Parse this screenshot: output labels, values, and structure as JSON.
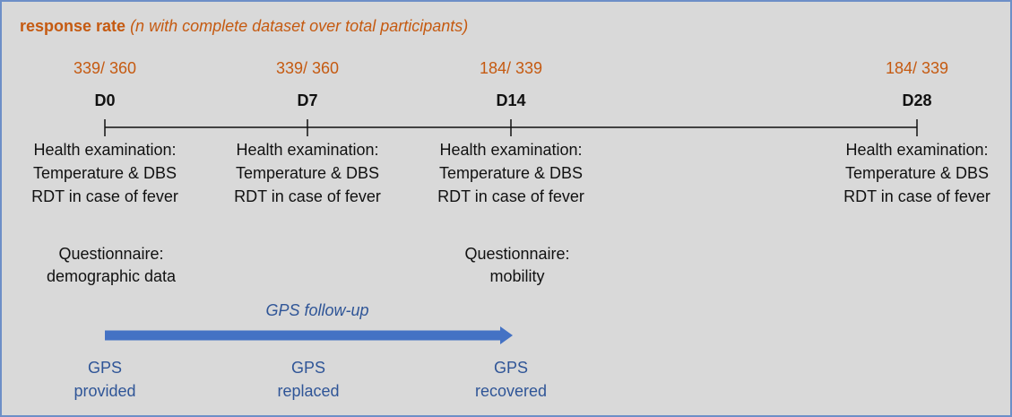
{
  "header": {
    "label": "response rate",
    "note": "(n with complete dataset over total participants)"
  },
  "timepoints": [
    {
      "day": "D0",
      "rate": "339/ 360",
      "exam": [
        "Health examination:",
        "Temperature & DBS",
        "RDT in case of fever"
      ]
    },
    {
      "day": "D7",
      "rate": "339/ 360",
      "exam": [
        "Health examination:",
        "Temperature & DBS",
        "RDT in case of fever"
      ]
    },
    {
      "day": "D14",
      "rate": "184/ 339",
      "exam": [
        "Health examination:",
        "Temperature & DBS",
        "RDT in case of fever"
      ]
    },
    {
      "day": "D28",
      "rate": "184/ 339",
      "exam": [
        "Health examination:",
        "Temperature & DBS",
        "RDT in case of fever"
      ]
    }
  ],
  "questionnaires": [
    [
      "Questionnaire:",
      "demographic data"
    ],
    [
      "Questionnaire:",
      "mobility"
    ]
  ],
  "gps": {
    "label": "GPS follow-up",
    "events": [
      [
        "GPS",
        "provided"
      ],
      [
        "GPS",
        "replaced"
      ],
      [
        "GPS",
        "recovered"
      ]
    ]
  }
}
